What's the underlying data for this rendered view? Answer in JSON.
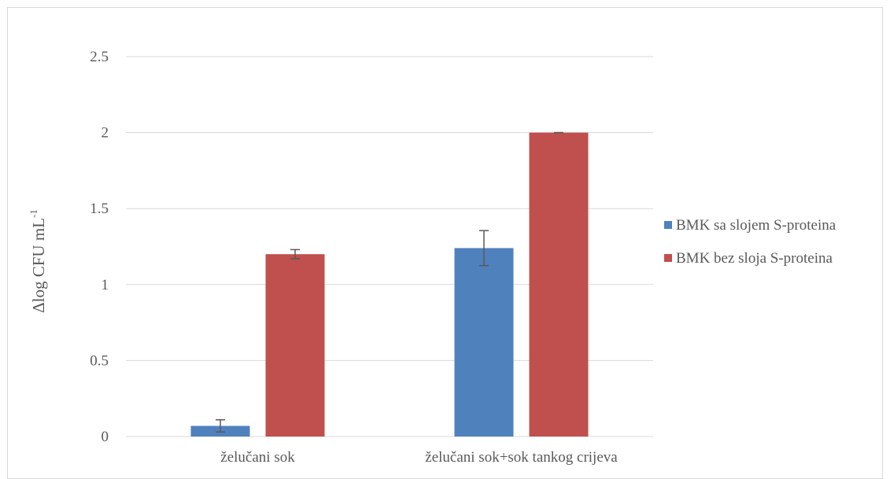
{
  "chart_data": {
    "type": "bar",
    "categories": [
      "želučani sok",
      "želučani sok+sok tankog crijeva"
    ],
    "series": [
      {
        "name": "BMK sa slojem S-proteina",
        "color": "#4f81bd",
        "values": [
          0.07,
          1.24
        ],
        "errors": [
          0.04,
          0.115
        ]
      },
      {
        "name": "BMK bez sloja S-proteina",
        "color": "#c0504d",
        "values": [
          1.2,
          2.0
        ],
        "errors": [
          0.03,
          0.0
        ]
      }
    ],
    "ylabel": "Δlog CFU mL",
    "ylabel_sup": "-1",
    "ylim": [
      0,
      2.5
    ],
    "yticks": [
      "0",
      "0.5",
      "1",
      "1.5",
      "2",
      "2.5"
    ],
    "grid": true,
    "legend_position": "right"
  }
}
